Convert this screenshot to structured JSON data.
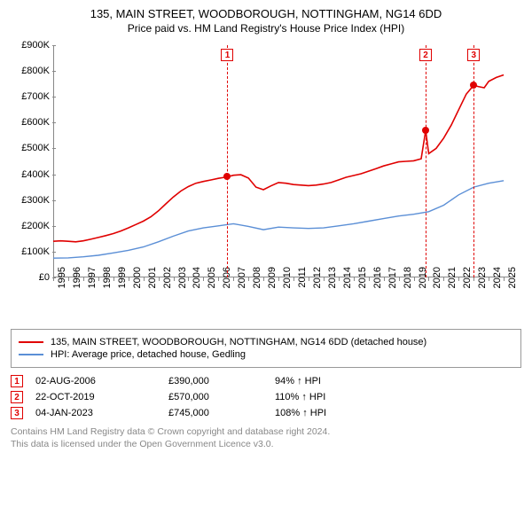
{
  "title": {
    "line1": "135, MAIN STREET, WOODBOROUGH, NOTTINGHAM, NG14 6DD",
    "line2": "Price paid vs. HM Land Registry's House Price Index (HPI)"
  },
  "chart": {
    "type": "line",
    "background_color": "#ffffff",
    "axis_color": "#888888",
    "xlim": [
      1995,
      2025.7
    ],
    "ylim": [
      0,
      900
    ],
    "ylabel_prefix": "£",
    "ylabel_suffix": "K",
    "ytick_step": 100,
    "yticks": [
      0,
      100,
      200,
      300,
      400,
      500,
      600,
      700,
      800,
      900
    ],
    "xticks": [
      1995,
      1996,
      1997,
      1998,
      1999,
      2000,
      2001,
      2002,
      2003,
      2004,
      2005,
      2006,
      2007,
      2008,
      2009,
      2010,
      2011,
      2012,
      2013,
      2014,
      2015,
      2016,
      2017,
      2018,
      2019,
      2020,
      2021,
      2022,
      2023,
      2024,
      2025
    ],
    "label_fontsize": 11,
    "series": [
      {
        "name": "property",
        "label": "135, MAIN STREET, WOODBOROUGH, NOTTINGHAM, NG14 6DD (detached house)",
        "color": "#e00000",
        "line_width": 1.6,
        "data": [
          [
            1995,
            140
          ],
          [
            1995.5,
            142
          ],
          [
            1996,
            140
          ],
          [
            1996.5,
            138
          ],
          [
            1997,
            142
          ],
          [
            1997.5,
            148
          ],
          [
            1998,
            155
          ],
          [
            1998.5,
            162
          ],
          [
            1999,
            170
          ],
          [
            1999.5,
            180
          ],
          [
            2000,
            192
          ],
          [
            2000.5,
            205
          ],
          [
            2001,
            218
          ],
          [
            2001.5,
            235
          ],
          [
            2002,
            258
          ],
          [
            2002.5,
            285
          ],
          [
            2003,
            312
          ],
          [
            2003.5,
            335
          ],
          [
            2004,
            352
          ],
          [
            2004.5,
            365
          ],
          [
            2005,
            372
          ],
          [
            2005.5,
            378
          ],
          [
            2006,
            384
          ],
          [
            2006.6,
            390
          ],
          [
            2007,
            396
          ],
          [
            2007.5,
            398
          ],
          [
            2008,
            385
          ],
          [
            2008.5,
            350
          ],
          [
            2009,
            340
          ],
          [
            2009.5,
            355
          ],
          [
            2010,
            368
          ],
          [
            2010.5,
            365
          ],
          [
            2011,
            360
          ],
          [
            2011.5,
            358
          ],
          [
            2012,
            356
          ],
          [
            2012.5,
            358
          ],
          [
            2013,
            362
          ],
          [
            2013.5,
            368
          ],
          [
            2014,
            378
          ],
          [
            2014.5,
            388
          ],
          [
            2015,
            395
          ],
          [
            2015.5,
            402
          ],
          [
            2016,
            412
          ],
          [
            2016.5,
            422
          ],
          [
            2017,
            432
          ],
          [
            2017.5,
            440
          ],
          [
            2018,
            448
          ],
          [
            2018.5,
            450
          ],
          [
            2019,
            452
          ],
          [
            2019.5,
            460
          ],
          [
            2019.8,
            570
          ],
          [
            2020,
            480
          ],
          [
            2020.5,
            500
          ],
          [
            2021,
            540
          ],
          [
            2021.5,
            590
          ],
          [
            2022,
            650
          ],
          [
            2022.5,
            710
          ],
          [
            2023.0,
            745
          ],
          [
            2023.3,
            740
          ],
          [
            2023.7,
            735
          ],
          [
            2024,
            760
          ],
          [
            2024.5,
            775
          ],
          [
            2025,
            785
          ]
        ]
      },
      {
        "name": "hpi",
        "label": "HPI: Average price, detached house, Gedling",
        "color": "#5b8fd6",
        "line_width": 1.4,
        "data": [
          [
            1995,
            75
          ],
          [
            1996,
            76
          ],
          [
            1997,
            80
          ],
          [
            1998,
            86
          ],
          [
            1999,
            95
          ],
          [
            2000,
            105
          ],
          [
            2001,
            118
          ],
          [
            2002,
            138
          ],
          [
            2003,
            160
          ],
          [
            2004,
            180
          ],
          [
            2005,
            192
          ],
          [
            2006,
            200
          ],
          [
            2007,
            208
          ],
          [
            2008,
            198
          ],
          [
            2009,
            185
          ],
          [
            2010,
            195
          ],
          [
            2011,
            192
          ],
          [
            2012,
            190
          ],
          [
            2013,
            192
          ],
          [
            2014,
            200
          ],
          [
            2015,
            208
          ],
          [
            2016,
            218
          ],
          [
            2017,
            228
          ],
          [
            2018,
            238
          ],
          [
            2019,
            245
          ],
          [
            2020,
            255
          ],
          [
            2021,
            280
          ],
          [
            2022,
            320
          ],
          [
            2023,
            350
          ],
          [
            2024,
            365
          ],
          [
            2025,
            375
          ]
        ]
      }
    ],
    "markers": [
      {
        "n": "1",
        "year": 2006.6,
        "value": 390
      },
      {
        "n": "2",
        "year": 2019.8,
        "value": 570
      },
      {
        "n": "3",
        "year": 2023.0,
        "value": 745
      }
    ]
  },
  "legend": {
    "items": [
      {
        "color": "#e00000",
        "label_ref": "chart.series.0.label"
      },
      {
        "color": "#5b8fd6",
        "label_ref": "chart.series.1.label"
      }
    ]
  },
  "sales": [
    {
      "n": "1",
      "date": "02-AUG-2006",
      "price": "£390,000",
      "hpi": "94% ↑ HPI"
    },
    {
      "n": "2",
      "date": "22-OCT-2019",
      "price": "£570,000",
      "hpi": "110% ↑ HPI"
    },
    {
      "n": "3",
      "date": "04-JAN-2023",
      "price": "£745,000",
      "hpi": "108% ↑ HPI"
    }
  ],
  "footer": {
    "line1": "Contains HM Land Registry data © Crown copyright and database right 2024.",
    "line2": "This data is licensed under the Open Government Licence v3.0."
  }
}
